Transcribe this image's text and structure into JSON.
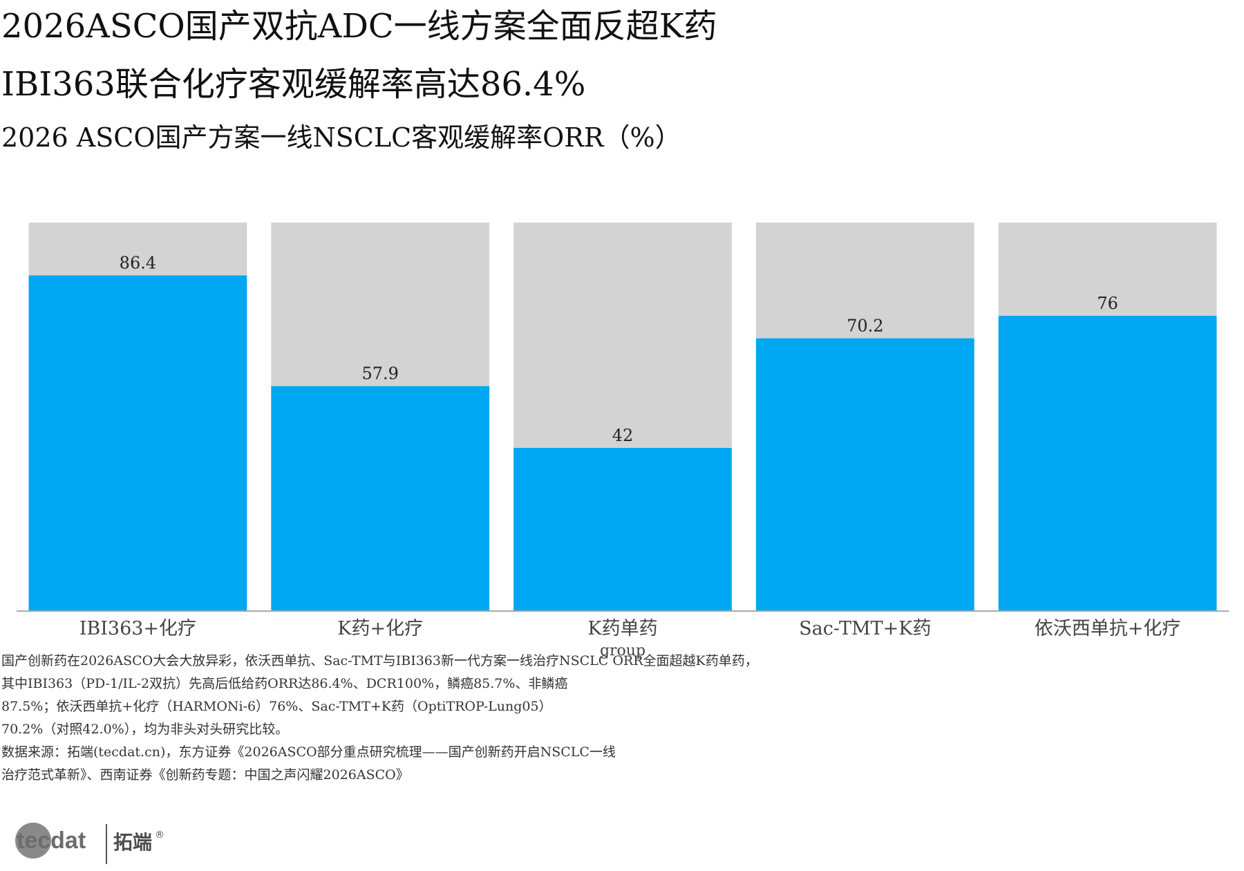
{
  "header": {
    "title_line1": "2026ASCO国产双抗ADC一线方案全面反超K药",
    "title_line2": "IBI363联合化疗客观缓解率高达86.4%",
    "subtitle": "2026 ASCO国产方案一线NSCLC客观缓解率ORR（%）"
  },
  "chart_data": {
    "type": "bar",
    "categories": [
      "IBI363+化疗",
      "K药+化疗",
      "K药单药",
      "Sac-TMT+K药",
      "依沃西单抗+化疗"
    ],
    "values": [
      86.4,
      57.9,
      42,
      70.2,
      76
    ],
    "data_labels": [
      "86.4",
      "57.9",
      "42",
      "70.2",
      "76"
    ],
    "xlabel": "group",
    "ylabel": "",
    "ylim": [
      0,
      100
    ],
    "background_bar_value": 100,
    "grid": false,
    "colors": {
      "bar": "#00A7F2",
      "background_bar": "#D3D3D3",
      "axis": "#AAAAAA"
    }
  },
  "notes": {
    "lines": [
      "国产创新药在2026ASCO大会大放异彩，依沃西单抗、Sac-TMT与IBI363新一代方案一线治疗NSCLC ORR全面超越K药单药，",
      "其中IBI363（PD-1/IL-2双抗）先高后低给药ORR达86.4%、DCR100%，鳞癌85.7%、非鳞癌",
      "87.5%；依沃西单抗+化疗（HARMONi-6）76%、Sac-TMT+K药（OptiTROP-Lung05）",
      "70.2%（对照42.0%），均为非头对头研究比较。",
      "数据来源：拓端(tecdat.cn)，东方证券《2026ASCO部分重点研究梳理——国产创新药开启NSCLC一线",
      "治疗范式革新》、西南证券《创新药专题：中国之声闪耀2026ASCO》"
    ]
  },
  "logo": {
    "text_en": "tecdat",
    "text_cn": "拓端",
    "mark": "®"
  }
}
